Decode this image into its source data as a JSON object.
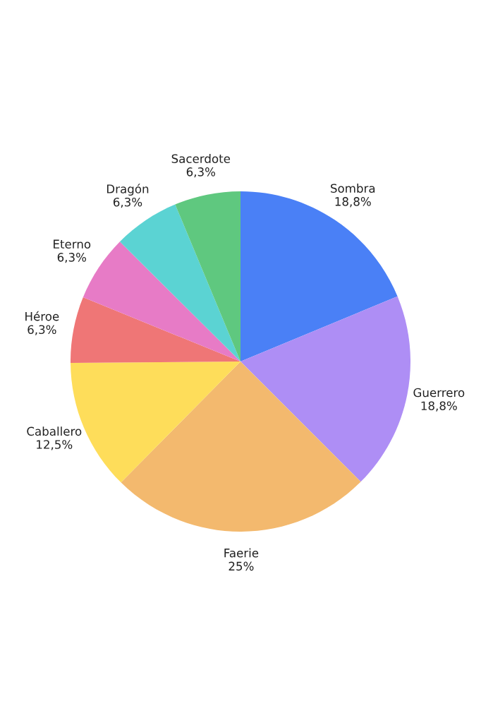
{
  "chart_data": {
    "type": "pie",
    "categories": [
      "Sombra",
      "Guerrero",
      "Faerie",
      "Caballero",
      "Héroe",
      "Eterno",
      "Dragón",
      "Sacerdote"
    ],
    "values": [
      18.8,
      18.8,
      25,
      12.5,
      6.3,
      6.3,
      6.3,
      6.3
    ],
    "value_labels": [
      "18,8%",
      "18,8%",
      "25%",
      "12,5%",
      "6,3%",
      "6,3%",
      "6,3%",
      "6,3%"
    ],
    "colors": [
      "#4a80f6",
      "#ae8ef5",
      "#f3b96e",
      "#fedd5a",
      "#ef7676",
      "#e77bc6",
      "#5bd3d3",
      "#5fc87f"
    ],
    "legend": false
  }
}
